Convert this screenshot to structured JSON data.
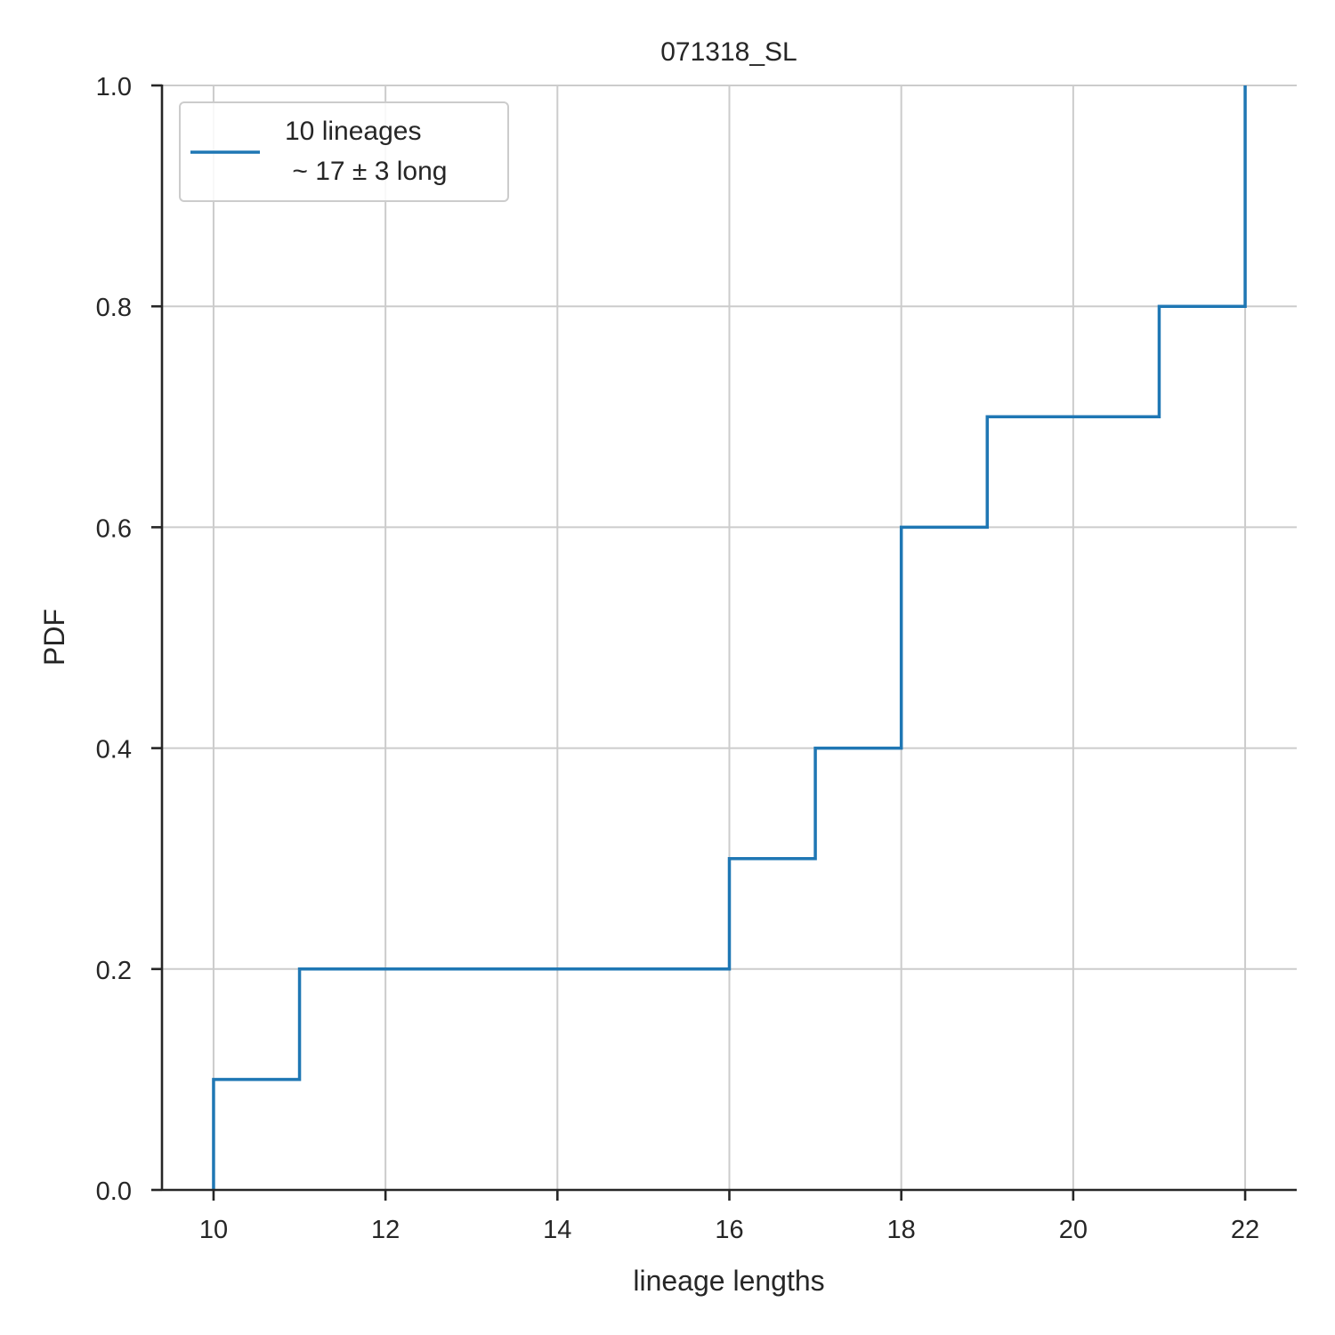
{
  "chart_data": {
    "type": "line",
    "title": "071318_SL",
    "xlabel": "lineage lengths",
    "ylabel": "PDF",
    "xlim": [
      9.4,
      22.6
    ],
    "ylim": [
      0.0,
      1.0
    ],
    "xticks": [
      10,
      12,
      14,
      16,
      18,
      20,
      22
    ],
    "yticks": [
      0.0,
      0.2,
      0.4,
      0.6,
      0.8,
      1.0
    ],
    "xtick_labels": [
      "10",
      "12",
      "14",
      "16",
      "18",
      "20",
      "22"
    ],
    "ytick_labels": [
      "0.0",
      "0.2",
      "0.4",
      "0.6",
      "0.8",
      "1.0"
    ],
    "grid": true,
    "legend_position": "top-left",
    "series": [
      {
        "name": "10 lineages\n ~ 17 ± 3 long",
        "color": "#1f77b4",
        "step": "post",
        "x": [
          10,
          10,
          11,
          11,
          16,
          16,
          17,
          17,
          18,
          18,
          19,
          19,
          21,
          21,
          22,
          22
        ],
        "y": [
          0.0,
          0.1,
          0.1,
          0.2,
          0.2,
          0.3,
          0.3,
          0.4,
          0.4,
          0.6,
          0.6,
          0.7,
          0.7,
          0.8,
          0.8,
          1.0
        ]
      }
    ]
  },
  "legend": {
    "line1": "10 lineages",
    "line2": " ~ 17 ± 3 long"
  }
}
